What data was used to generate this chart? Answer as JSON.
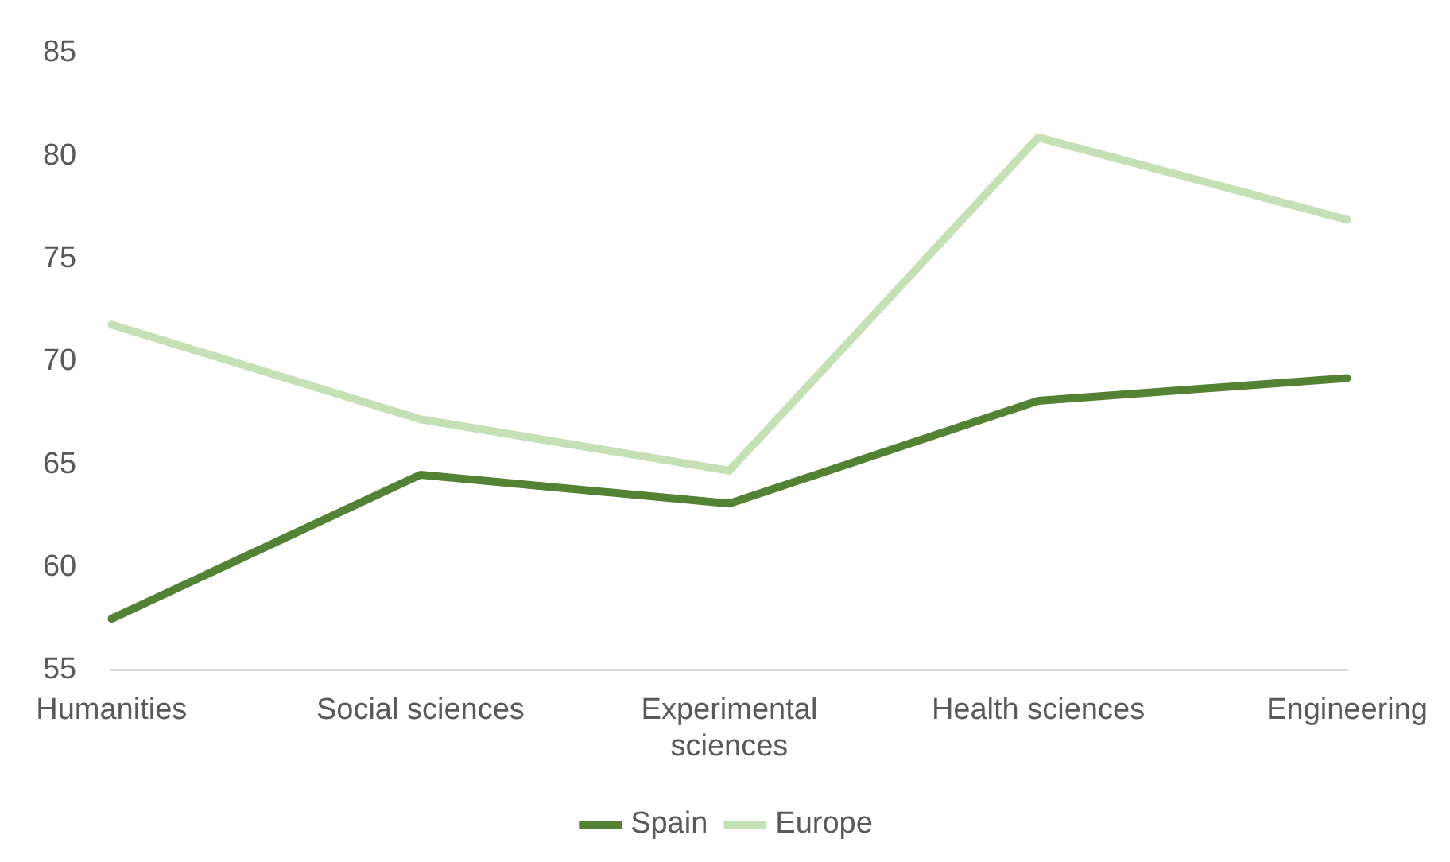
{
  "chart_data": {
    "type": "line",
    "categories": [
      "Humanities",
      "Social sciences",
      "Experimental sciences",
      "Health sciences",
      "Engineering"
    ],
    "series": [
      {
        "name": "Spain",
        "color": "#548235",
        "values": [
          57.5,
          64.5,
          63.1,
          68.1,
          69.2
        ]
      },
      {
        "name": "Europe",
        "color": "#c5e0b4",
        "values": [
          71.8,
          67.2,
          64.7,
          80.9,
          76.9
        ]
      }
    ],
    "ylim": [
      55,
      85
    ],
    "yticks": [
      55,
      60,
      65,
      70,
      75,
      80,
      85
    ],
    "grid": false,
    "legend": "bottom",
    "marker": "none",
    "line_style": "solid"
  }
}
